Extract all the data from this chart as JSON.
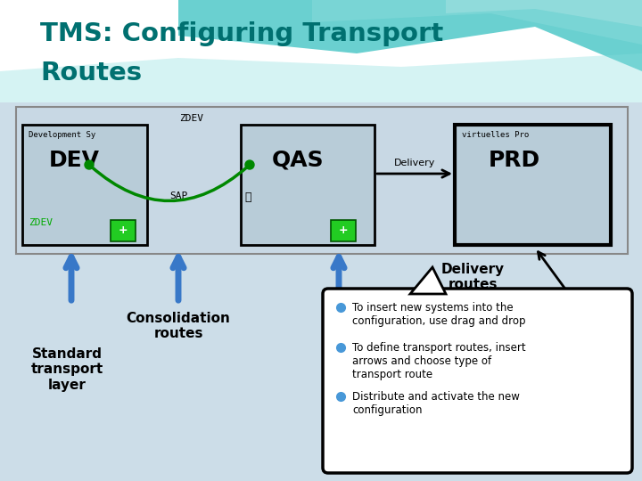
{
  "title_line1": "TMS: Configuring Transport",
  "title_line2": "Routes",
  "title_color": "#007070",
  "dev_label_small": "Development Sy",
  "dev_label_big": "DEV",
  "dev_label_bottom": "ZDEV",
  "sap_label": "SAP",
  "qas_label": "QAS",
  "prd_label_small": "virtuelles Pro",
  "prd_label_big": "PRD",
  "delivery_text": "Delivery",
  "zdev_label": "ZDEV",
  "delivery_routes_label": "Delivery\nroutes",
  "consolidation_routes_label": "Consolidation\nroutes",
  "standard_transport_label": "Standard\ntransport\nlayer",
  "bullet_points": [
    "To insert new systems into the\nconfiguration, use drag and drop",
    "To define transport routes, insert\narrows and choose type of\ntransport route",
    "Distribute and activate the new\nconfiguration"
  ],
  "arrow_color": "#3878c8",
  "green_route_color": "#008800",
  "callout_bg": "#ffffff",
  "callout_border": "#000000",
  "bullet_color": "#4898d8",
  "header_bg": "#ffffff",
  "main_bg": "#ccdde8",
  "inner_bg": "#c8d8e4",
  "box_bg": "#b8ccd8",
  "wave1_color": "#50c8c8",
  "wave2_color": "#80d8d8",
  "wave3_color": "#a0e0e0"
}
